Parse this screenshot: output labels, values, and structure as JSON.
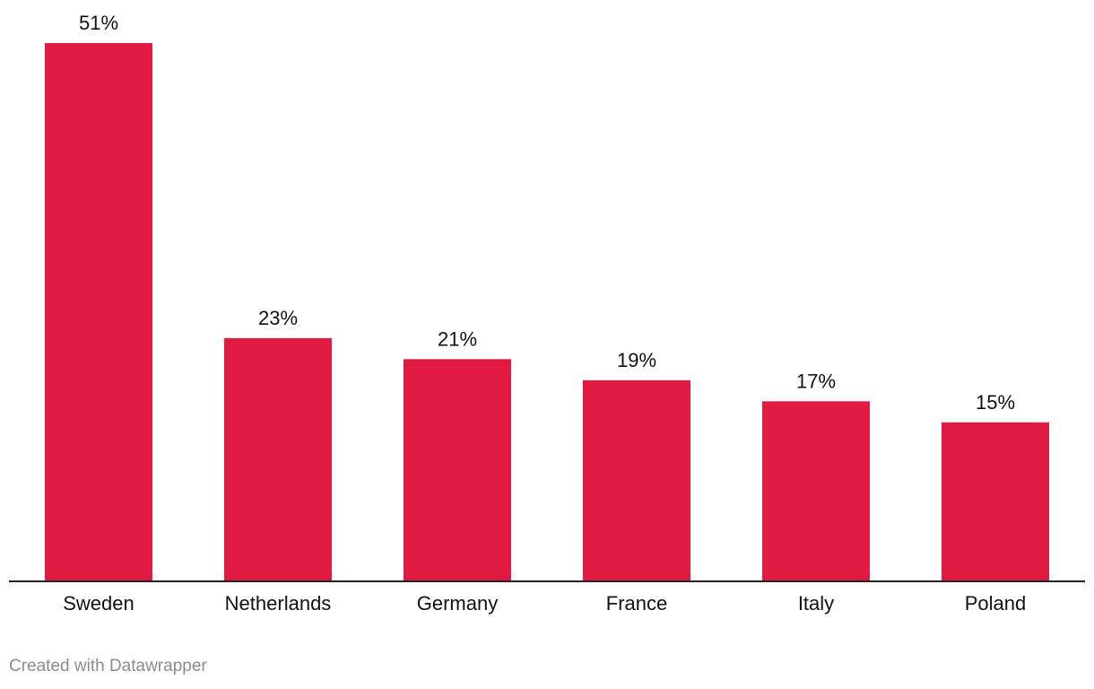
{
  "chart_data": {
    "type": "bar",
    "categories": [
      "Sweden",
      "Netherlands",
      "Germany",
      "France",
      "Italy",
      "Poland"
    ],
    "values": [
      51,
      23,
      21,
      19,
      17,
      15
    ],
    "value_labels": [
      "51%",
      "23%",
      "21%",
      "19%",
      "17%",
      "15%"
    ],
    "unit": "%",
    "ylim": [
      0,
      51
    ],
    "grid": false,
    "bar_color": "#e01a41"
  },
  "footer": {
    "credit": "Created with Datawrapper"
  }
}
